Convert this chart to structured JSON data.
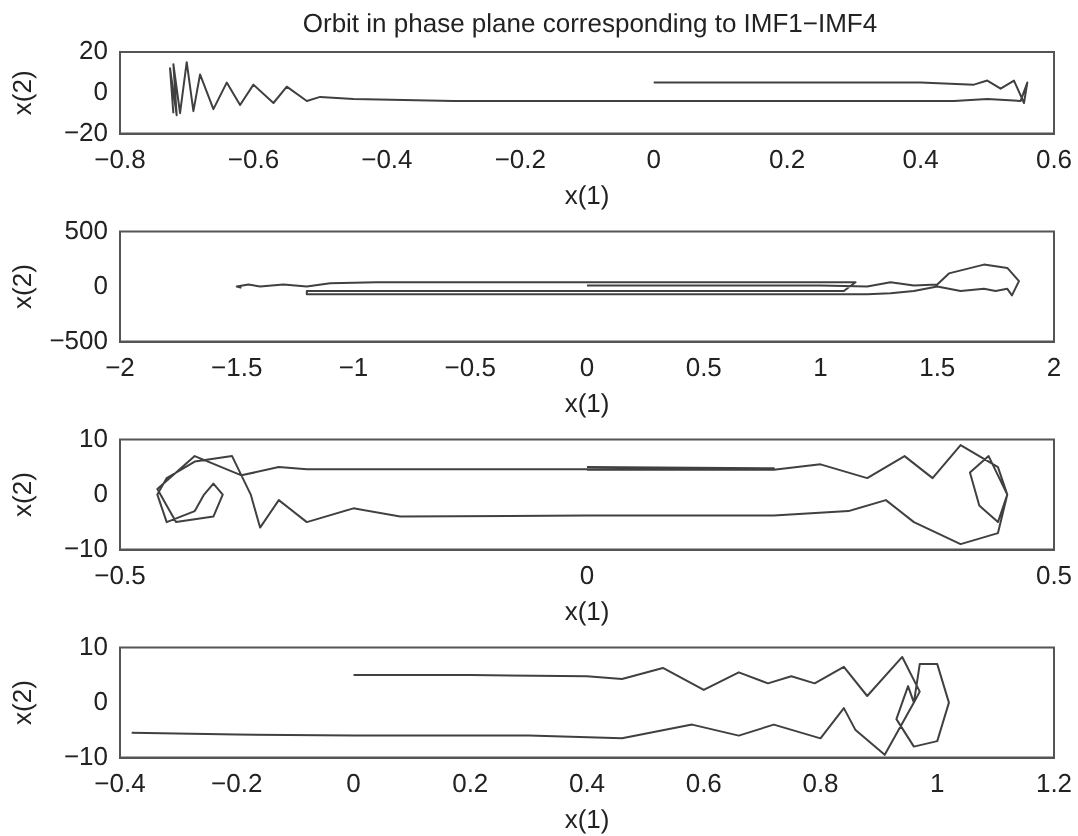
{
  "chart_data": [
    {
      "type": "line",
      "title": "Orbit in phase plane corresponding to IMF1−IMF4",
      "xlabel": "x(1)",
      "ylabel": "x(2)",
      "xlim": [
        -0.8,
        0.6
      ],
      "xticks": [
        -0.8,
        -0.6,
        -0.4,
        -0.2,
        0,
        0.2,
        0.4,
        0.6
      ],
      "ylim": [
        -20,
        20
      ],
      "yticks": [
        -20,
        0,
        20
      ],
      "series": [
        {
          "color": "#404040",
          "x": [
            0,
            0.2,
            0.4,
            0.48,
            0.5,
            0.52,
            0.54,
            0.555,
            0.56,
            0.55,
            0.5,
            0.45,
            0.3,
            0.1,
            -0.1,
            -0.3,
            -0.45,
            -0.5,
            -0.52,
            -0.55,
            -0.57,
            -0.6,
            -0.62,
            -0.64,
            -0.66,
            -0.68,
            -0.69,
            -0.7,
            -0.71,
            -0.72,
            -0.715,
            -0.725,
            -0.72
          ],
          "values": [
            5,
            5,
            5,
            4,
            6,
            2,
            6,
            -5,
            5,
            -4,
            -3,
            -4,
            -4,
            -4,
            -4,
            -4,
            -3,
            -2,
            -4,
            3,
            -5,
            4,
            -6,
            5,
            -8,
            9,
            -9,
            15,
            -10,
            14,
            -11,
            12,
            -10
          ]
        }
      ]
    },
    {
      "type": "line",
      "xlabel": "x(1)",
      "ylabel": "x(2)",
      "xlim": [
        -2,
        2
      ],
      "xticks": [
        -2,
        -1.5,
        -1,
        -0.5,
        0,
        0.5,
        1,
        1.5,
        2
      ],
      "ylim": [
        -500,
        500
      ],
      "yticks": [
        -500,
        0,
        500
      ],
      "series": [
        {
          "color": "#404040",
          "x": [
            0,
            0.5,
            1,
            1.2,
            1.3,
            1.4,
            1.5,
            1.55,
            1.7,
            1.8,
            1.85,
            1.82,
            1.8,
            1.75,
            1.7,
            1.6,
            1.5,
            1.4,
            1.3,
            1.2,
            0.5,
            -0.5,
            -1.2,
            -1.2,
            -0.5,
            0.5,
            1.1,
            1.15,
            0.5,
            -0.5,
            -0.9,
            -1.1,
            -1.2,
            -1.3,
            -1.4,
            -1.45,
            -1.5,
            -1.48
          ],
          "values": [
            10,
            10,
            10,
            0,
            40,
            10,
            20,
            120,
            200,
            170,
            50,
            -80,
            -20,
            -40,
            -20,
            -40,
            0,
            -40,
            -60,
            -70,
            -70,
            -70,
            -70,
            -40,
            -40,
            -40,
            -40,
            40,
            40,
            40,
            40,
            30,
            0,
            20,
            0,
            20,
            0,
            -10
          ]
        }
      ]
    },
    {
      "type": "line",
      "xlabel": "x(1)",
      "ylabel": "x(2)",
      "xlim": [
        -0.5,
        0.5
      ],
      "xticks": [
        -0.5,
        0,
        0.5
      ],
      "ylim": [
        -10,
        10
      ],
      "yticks": [
        -10,
        0,
        10
      ],
      "series": [
        {
          "color": "#404040",
          "x": [
            0,
            0.2,
            0.1,
            -0.2,
            -0.3,
            -0.33,
            -0.37,
            -0.42,
            -0.46,
            -0.44,
            -0.4,
            -0.39,
            -0.4,
            -0.41,
            -0.42,
            -0.45,
            -0.46,
            -0.45,
            -0.42,
            -0.38,
            -0.36,
            -0.35,
            -0.33,
            -0.3,
            -0.25,
            -0.2,
            0,
            0.2,
            0.28,
            0.32,
            0.35,
            0.4,
            0.44,
            0.45,
            0.43,
            0.41,
            0.42,
            0.44,
            0.45,
            0.44,
            0.4,
            0.37,
            0.34,
            0.3,
            0.25,
            0.2,
            0
          ],
          "values": [
            5,
            4.8,
            4.6,
            4.6,
            4.6,
            5,
            3.5,
            7,
            1,
            -5,
            -4,
            0,
            2,
            0,
            -3,
            -5,
            0,
            3,
            6,
            7,
            0,
            -6,
            -1,
            -5,
            -2.5,
            -4,
            -3.8,
            -3.8,
            -3,
            -1,
            -5,
            -9,
            -7,
            0,
            7,
            4,
            -2,
            -5,
            0,
            5,
            9,
            3,
            7,
            3,
            5.5,
            4.5,
            4.5
          ]
        }
      ]
    },
    {
      "type": "line",
      "xlabel": "x(1)",
      "ylabel": "x(2)",
      "xlim": [
        -0.4,
        1.2
      ],
      "xticks": [
        -0.4,
        -0.2,
        0,
        0.2,
        0.4,
        0.6,
        0.8,
        1,
        1.2
      ],
      "ylim": [
        -10,
        10
      ],
      "yticks": [
        -10,
        0,
        10
      ],
      "series": [
        {
          "color": "#404040",
          "x": [
            0,
            0.2,
            0.4,
            0.46,
            0.53,
            0.6,
            0.66,
            0.71,
            0.75,
            0.79,
            0.84,
            0.88,
            0.94,
            0.97,
            0.96,
            0.95,
            0.94,
            0.93,
            0.96,
            1,
            1.02,
            1,
            0.97,
            0.96,
            0.91,
            0.86,
            0.84,
            0.8,
            0.72,
            0.66,
            0.58,
            0.46,
            0.3,
            0,
            -0.2,
            -0.38
          ],
          "values": [
            5,
            5,
            4.8,
            4.3,
            6.3,
            2.3,
            5.5,
            3.5,
            4.8,
            3.5,
            6.5,
            1.2,
            8.3,
            2,
            0,
            3,
            0,
            -3,
            -8,
            -7,
            0,
            7,
            7,
            0,
            -9.5,
            -5,
            -1,
            -6.5,
            -4,
            -6,
            -4,
            -6.5,
            -6,
            -6,
            -5.8,
            -5.5
          ]
        }
      ]
    }
  ]
}
